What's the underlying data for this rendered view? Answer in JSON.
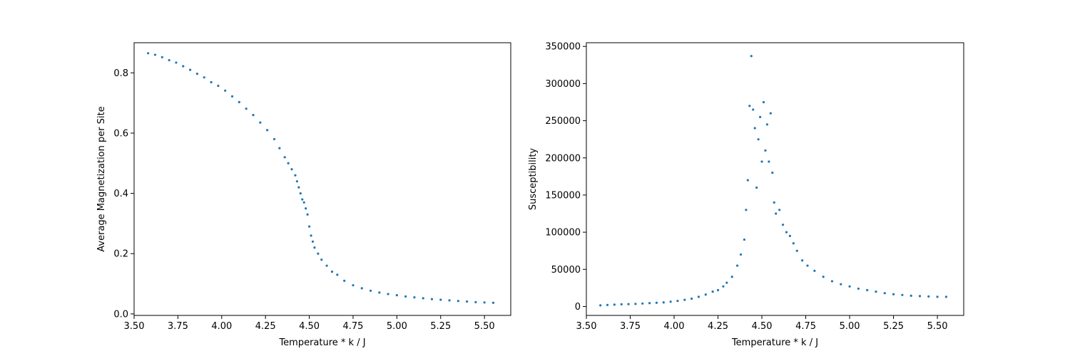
{
  "chart_data": [
    {
      "type": "scatter",
      "xlabel": "Temperature * k / J",
      "ylabel": "Average Magnetization per Site",
      "xlim": [
        3.5,
        5.65
      ],
      "ylim": [
        -0.005,
        0.9
      ],
      "grid": false,
      "marker_color": "#1f77b4",
      "xticks": [
        3.5,
        3.75,
        4.0,
        4.25,
        4.5,
        4.75,
        5.0,
        5.25,
        5.5
      ],
      "xtick_labels": [
        "3.50",
        "3.75",
        "4.00",
        "4.25",
        "4.50",
        "4.75",
        "5.00",
        "5.25",
        "5.50"
      ],
      "yticks": [
        0.0,
        0.2,
        0.4,
        0.6,
        0.8
      ],
      "ytick_labels": [
        "0.0",
        "0.2",
        "0.4",
        "0.6",
        "0.8"
      ],
      "x": [
        3.58,
        3.62,
        3.66,
        3.7,
        3.74,
        3.78,
        3.82,
        3.86,
        3.9,
        3.94,
        3.98,
        4.02,
        4.06,
        4.1,
        4.14,
        4.18,
        4.22,
        4.26,
        4.3,
        4.33,
        4.36,
        4.38,
        4.4,
        4.42,
        4.43,
        4.44,
        4.45,
        4.46,
        4.47,
        4.48,
        4.49,
        4.5,
        4.51,
        4.52,
        4.53,
        4.55,
        4.57,
        4.6,
        4.63,
        4.66,
        4.7,
        4.75,
        4.8,
        4.85,
        4.9,
        4.95,
        5.0,
        5.05,
        5.1,
        5.15,
        5.2,
        5.25,
        5.3,
        5.35,
        5.4,
        5.45,
        5.5,
        5.55
      ],
      "y": [
        0.865,
        0.86,
        0.852,
        0.842,
        0.834,
        0.822,
        0.81,
        0.797,
        0.785,
        0.769,
        0.757,
        0.741,
        0.722,
        0.703,
        0.681,
        0.66,
        0.635,
        0.61,
        0.58,
        0.55,
        0.52,
        0.5,
        0.48,
        0.46,
        0.44,
        0.42,
        0.4,
        0.38,
        0.37,
        0.35,
        0.33,
        0.29,
        0.26,
        0.24,
        0.22,
        0.2,
        0.18,
        0.16,
        0.14,
        0.13,
        0.11,
        0.095,
        0.085,
        0.077,
        0.071,
        0.066,
        0.062,
        0.058,
        0.055,
        0.052,
        0.049,
        0.047,
        0.045,
        0.043,
        0.041,
        0.039,
        0.038,
        0.037
      ]
    },
    {
      "type": "scatter",
      "xlabel": "Temperature * k / J",
      "ylabel": "Susceptibility",
      "xlim": [
        3.5,
        5.65
      ],
      "ylim": [
        -12000,
        355000
      ],
      "grid": false,
      "marker_color": "#1f77b4",
      "xticks": [
        3.5,
        3.75,
        4.0,
        4.25,
        4.5,
        4.75,
        5.0,
        5.25,
        5.5
      ],
      "xtick_labels": [
        "3.50",
        "3.75",
        "4.00",
        "4.25",
        "4.50",
        "4.75",
        "5.00",
        "5.25",
        "5.50"
      ],
      "yticks": [
        0,
        50000,
        100000,
        150000,
        200000,
        250000,
        300000,
        350000
      ],
      "ytick_labels": [
        "0",
        "50000",
        "100000",
        "150000",
        "200000",
        "250000",
        "300000",
        "350000"
      ],
      "x": [
        3.58,
        3.62,
        3.66,
        3.7,
        3.74,
        3.78,
        3.82,
        3.86,
        3.9,
        3.94,
        3.98,
        4.02,
        4.06,
        4.1,
        4.14,
        4.18,
        4.22,
        4.25,
        4.28,
        4.3,
        4.33,
        4.36,
        4.38,
        4.4,
        4.41,
        4.42,
        4.43,
        4.44,
        4.45,
        4.46,
        4.47,
        4.48,
        4.49,
        4.5,
        4.51,
        4.52,
        4.53,
        4.54,
        4.55,
        4.56,
        4.57,
        4.58,
        4.6,
        4.62,
        4.64,
        4.66,
        4.68,
        4.7,
        4.73,
        4.76,
        4.8,
        4.85,
        4.9,
        4.95,
        5.0,
        5.05,
        5.1,
        5.15,
        5.2,
        5.25,
        5.3,
        5.35,
        5.4,
        5.45,
        5.5,
        5.55
      ],
      "y": [
        1500,
        2000,
        2500,
        3000,
        3200,
        3500,
        4000,
        4500,
        5000,
        5500,
        6500,
        7500,
        9000,
        10500,
        13000,
        16000,
        20000,
        22000,
        27000,
        32000,
        40000,
        55000,
        70000,
        90000,
        130000,
        170000,
        270000,
        337000,
        265000,
        240000,
        160000,
        225000,
        255000,
        195000,
        275000,
        210000,
        245000,
        195000,
        260000,
        180000,
        140000,
        125000,
        130000,
        110000,
        100000,
        95000,
        85000,
        75000,
        62000,
        55000,
        48000,
        40000,
        34000,
        30000,
        27000,
        24000,
        22000,
        20000,
        18000,
        16500,
        15500,
        14500,
        14000,
        13500,
        13000,
        13000
      ]
    }
  ]
}
